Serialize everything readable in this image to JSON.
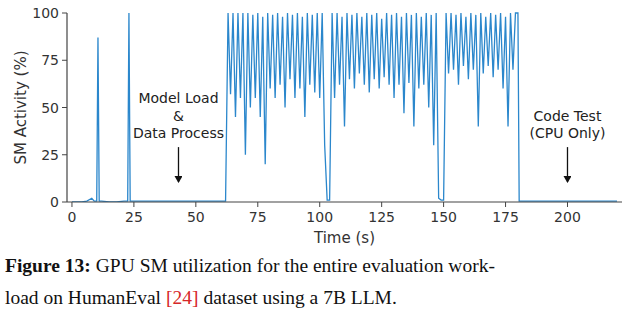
{
  "chart_data": {
    "type": "line",
    "caption_label": "Figure 13:",
    "caption_line1": "GPU SM utilization for the entire evaluation work-",
    "caption_line2_start": "load on HumanEval",
    "caption_ref": "[24]",
    "caption_line2_end": "dataset using a 7B LLM.",
    "x_label": "Time (s)",
    "y_label": "SM Activity (%)",
    "xlim": [
      -2,
      222
    ],
    "ylim": [
      0,
      100
    ],
    "xticks": [
      0,
      25,
      50,
      75,
      100,
      125,
      150,
      175,
      200
    ],
    "yticks": [
      0,
      25,
      50,
      75,
      100
    ],
    "grid": false,
    "color": "#2b87cc",
    "annotations": [
      {
        "lines": [
          "Model Load",
          "&",
          "Data Process"
        ],
        "x": 43,
        "y": 10
      },
      {
        "lines": [
          "Code Test",
          "(CPU Only)"
        ],
        "x": 200,
        "y": 10
      }
    ],
    "x": [
      0,
      2,
      4,
      6,
      8,
      9,
      10,
      10.5,
      11,
      12,
      15,
      18,
      21,
      22.5,
      23,
      23.5,
      25,
      30,
      35,
      40,
      45,
      50,
      55,
      60,
      62,
      63,
      64,
      65,
      66,
      67,
      68,
      69,
      70,
      71,
      72,
      73,
      74,
      75,
      76,
      77,
      78,
      79,
      80,
      81,
      82,
      83,
      84,
      85,
      86,
      87,
      88,
      89,
      90,
      91,
      92,
      93,
      94,
      95,
      96,
      97,
      98,
      99,
      100,
      101,
      102,
      103,
      104,
      105,
      106,
      107,
      108,
      109,
      110,
      111,
      112,
      113,
      114,
      115,
      116,
      117,
      118,
      119,
      120,
      121,
      122,
      123,
      124,
      125,
      126,
      127,
      128,
      129,
      130,
      131,
      132,
      133,
      134,
      135,
      136,
      137,
      138,
      139,
      140,
      141,
      142,
      143,
      144,
      145,
      146,
      147,
      148,
      149,
      150,
      151,
      152,
      153,
      154,
      155,
      156,
      157,
      158,
      159,
      160,
      161,
      162,
      163,
      164,
      165,
      166,
      167,
      168,
      169,
      170,
      171,
      172,
      173,
      174,
      175,
      176,
      177,
      178,
      179,
      180,
      180.5,
      185,
      190,
      195,
      200,
      205,
      210,
      215,
      220
    ],
    "values": [
      0,
      0,
      0,
      0.5,
      2,
      0.5,
      0.5,
      87,
      0.5,
      0.5,
      0,
      0,
      0.5,
      0.5,
      100,
      0.5,
      0.5,
      0.5,
      0.5,
      0.5,
      0.5,
      0.5,
      0.5,
      0.5,
      0.5,
      100,
      57,
      100,
      45,
      100,
      55,
      100,
      25,
      100,
      50,
      99,
      55,
      100,
      45,
      98,
      20,
      100,
      60,
      99,
      55,
      100,
      62,
      98,
      50,
      100,
      65,
      99,
      55,
      100,
      60,
      98,
      45,
      100,
      62,
      99,
      58,
      100,
      55,
      100,
      30,
      1,
      1,
      100,
      55,
      100,
      62,
      98,
      40,
      100,
      65,
      99,
      60,
      100,
      68,
      98,
      62,
      100,
      58,
      99,
      65,
      100,
      60,
      97,
      66,
      100,
      62,
      99,
      55,
      100,
      62,
      98,
      47,
      100,
      63,
      99,
      40,
      100,
      60,
      98,
      62,
      100,
      50,
      99,
      30,
      100,
      2,
      1,
      1,
      100,
      68,
      100,
      70,
      99,
      62,
      100,
      72,
      98,
      65,
      100,
      70,
      99,
      40,
      100,
      68,
      98,
      72,
      100,
      66,
      99,
      70,
      100,
      60,
      98,
      40,
      100,
      70,
      100,
      100,
      0.5,
      0.5,
      0.5,
      0.5,
      0.5,
      0.5,
      0.5,
      0.5,
      0.5
    ]
  }
}
